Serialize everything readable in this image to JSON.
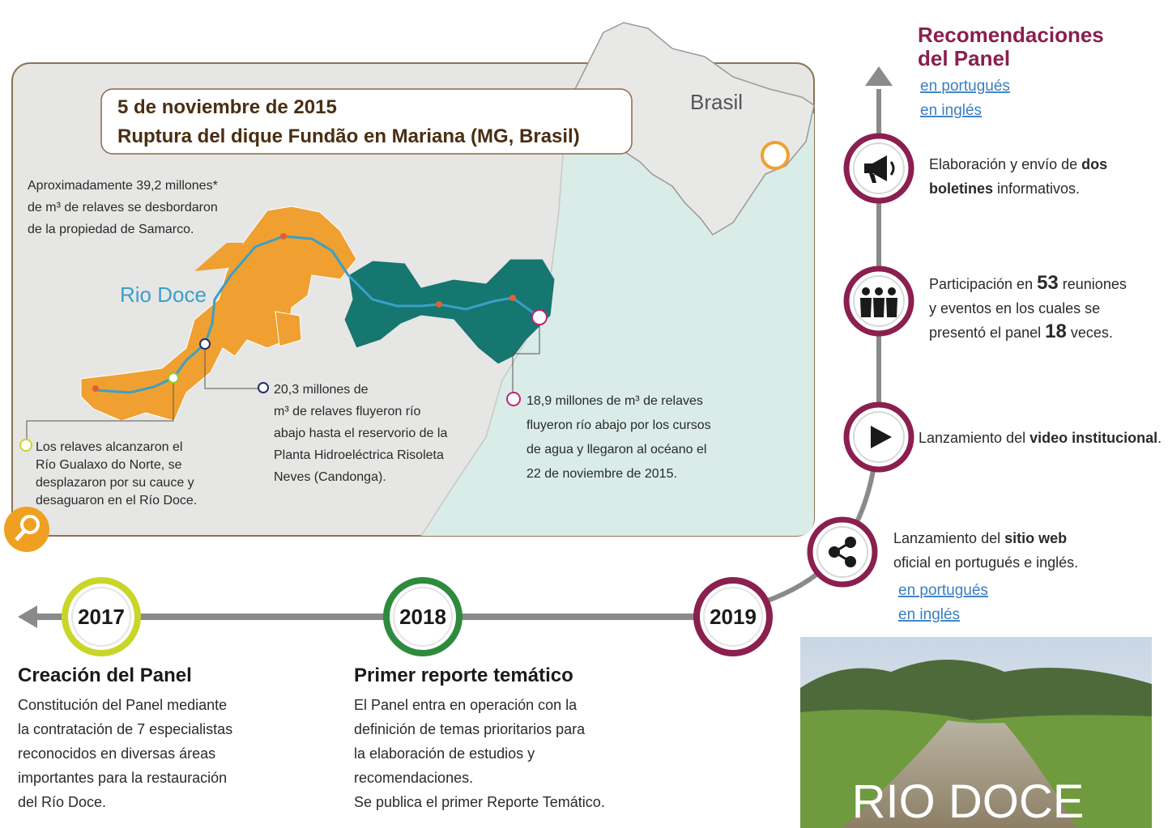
{
  "map": {
    "date": "5 de noviembre de 2015",
    "event": "Ruptura del dique Fundão en Mariana (MG, Brasil)",
    "country": "Brasil",
    "river": "Rio Doce",
    "notes": [
      {
        "lines": [
          "Aproximadamente 39,2 millones*",
          "de m³ de relaves se desbordaron",
          "de la propiedad de Samarco."
        ]
      },
      {
        "lines": [
          "Los relaves alcanzaron el",
          "Río Gualaxo do Norte, se",
          "desplazaron por su cauce y",
          "desaguaron en el Río Doce."
        ]
      },
      {
        "lines": [
          "20,3 millones de",
          "m³ de relaves fluyeron río",
          "abajo hasta el reservorio de la",
          "Planta Hidroeléctrica Risoleta",
          "Neves (Candonga)."
        ]
      },
      {
        "lines": [
          "18,9 millones de m³ de relaves",
          "fluyeron río abajo por los cursos",
          "de agua y llegaron al océano el",
          "22 de noviembre de 2015."
        ]
      }
    ]
  },
  "recommendations": {
    "title": [
      "Recomendaciones",
      "del Panel"
    ],
    "links": [
      "en portugués",
      "en inglés"
    ]
  },
  "milestones": [
    {
      "lines": [
        [
          {
            "text": "Elaboración y envío de ",
            "bold": false
          },
          {
            "text": "dos",
            "bold": true
          }
        ],
        [
          {
            "text": "boletines",
            "bold": true
          },
          {
            "text": " informativos.",
            "bold": false
          }
        ]
      ]
    },
    {
      "lines": [
        [
          {
            "text": "Participación en ",
            "bold": false
          },
          {
            "text": "53",
            "bold": true
          },
          {
            "text": " reuniones",
            "bold": false
          }
        ],
        [
          {
            "text": "y eventos en los cuales se",
            "bold": false
          }
        ],
        [
          {
            "text": "presentó el panel ",
            "bold": false
          },
          {
            "text": "18",
            "bold": true
          },
          {
            "text": " veces.",
            "bold": false
          }
        ]
      ]
    },
    {
      "lines": [
        [
          {
            "text": "Lanzamiento del ",
            "bold": false
          },
          {
            "text": "video institucional",
            "bold": true
          },
          {
            "text": ".",
            "bold": false
          }
        ]
      ]
    },
    {
      "lines": [
        [
          {
            "text": "Lanzamiento del ",
            "bold": false
          },
          {
            "text": "sitio web",
            "bold": true
          }
        ],
        [
          {
            "text": "oficial en portugués e inglés.",
            "bold": false
          }
        ]
      ],
      "links": [
        "en portugués",
        "en inglés"
      ]
    }
  ],
  "timeline": [
    {
      "year": "2017",
      "title": "Creación del Panel",
      "lines": [
        "Constitución del Panel mediante",
        "la contratación de 7 especialistas",
        "reconocidos en diversas áreas",
        "importantes para la restauración",
        "del Río Doce."
      ]
    },
    {
      "year": "2018",
      "title": "Primer reporte temático",
      "lines": [
        "El Panel entra en operación con la",
        "definición de temas prioritarios para",
        "la elaboración de estudios y",
        "recomendaciones.",
        "Se publica el primer Reporte Temático."
      ]
    },
    {
      "year": "2019"
    }
  ],
  "photo": {
    "caption": "RIO DOCE"
  }
}
